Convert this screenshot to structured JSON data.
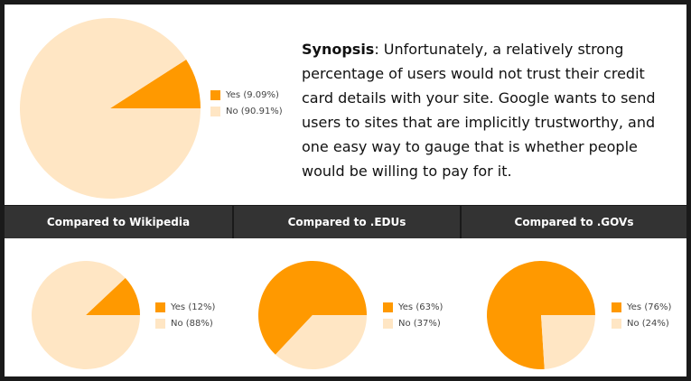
{
  "synopsis": {
    "label": "Synopsis",
    "text": ": Unfortunately, a relatively strong percentage of users would not trust their credit card details with your site. Google wants to send users to sites that are implicitly trustworthy, and one easy way to gauge that is whether people would be willing to pay for it."
  },
  "headers": [
    "Compared to Wikipedia",
    "Compared to .EDUs",
    "Compared to .GOVs"
  ],
  "colors": {
    "yes": "#ff9900",
    "no": "#ffe6c4"
  },
  "chart_data": [
    {
      "type": "pie",
      "labels": [
        "Yes",
        "No"
      ],
      "values": [
        9.09,
        90.91
      ],
      "legend": [
        "Yes (9.09%)",
        "No (90.91%)"
      ],
      "legend_position": "right"
    },
    {
      "type": "pie",
      "title": "Compared to Wikipedia",
      "labels": [
        "Yes",
        "No"
      ],
      "values": [
        12,
        88
      ],
      "legend": [
        "Yes (12%)",
        "No (88%)"
      ],
      "legend_position": "right"
    },
    {
      "type": "pie",
      "title": "Compared to .EDUs",
      "labels": [
        "Yes",
        "No"
      ],
      "values": [
        63,
        37
      ],
      "legend": [
        "Yes (63%)",
        "No (37%)"
      ],
      "legend_position": "right"
    },
    {
      "type": "pie",
      "title": "Compared to .GOVs",
      "labels": [
        "Yes",
        "No"
      ],
      "values": [
        76,
        24
      ],
      "legend": [
        "Yes (76%)",
        "No (24%)"
      ],
      "legend_position": "right"
    }
  ]
}
